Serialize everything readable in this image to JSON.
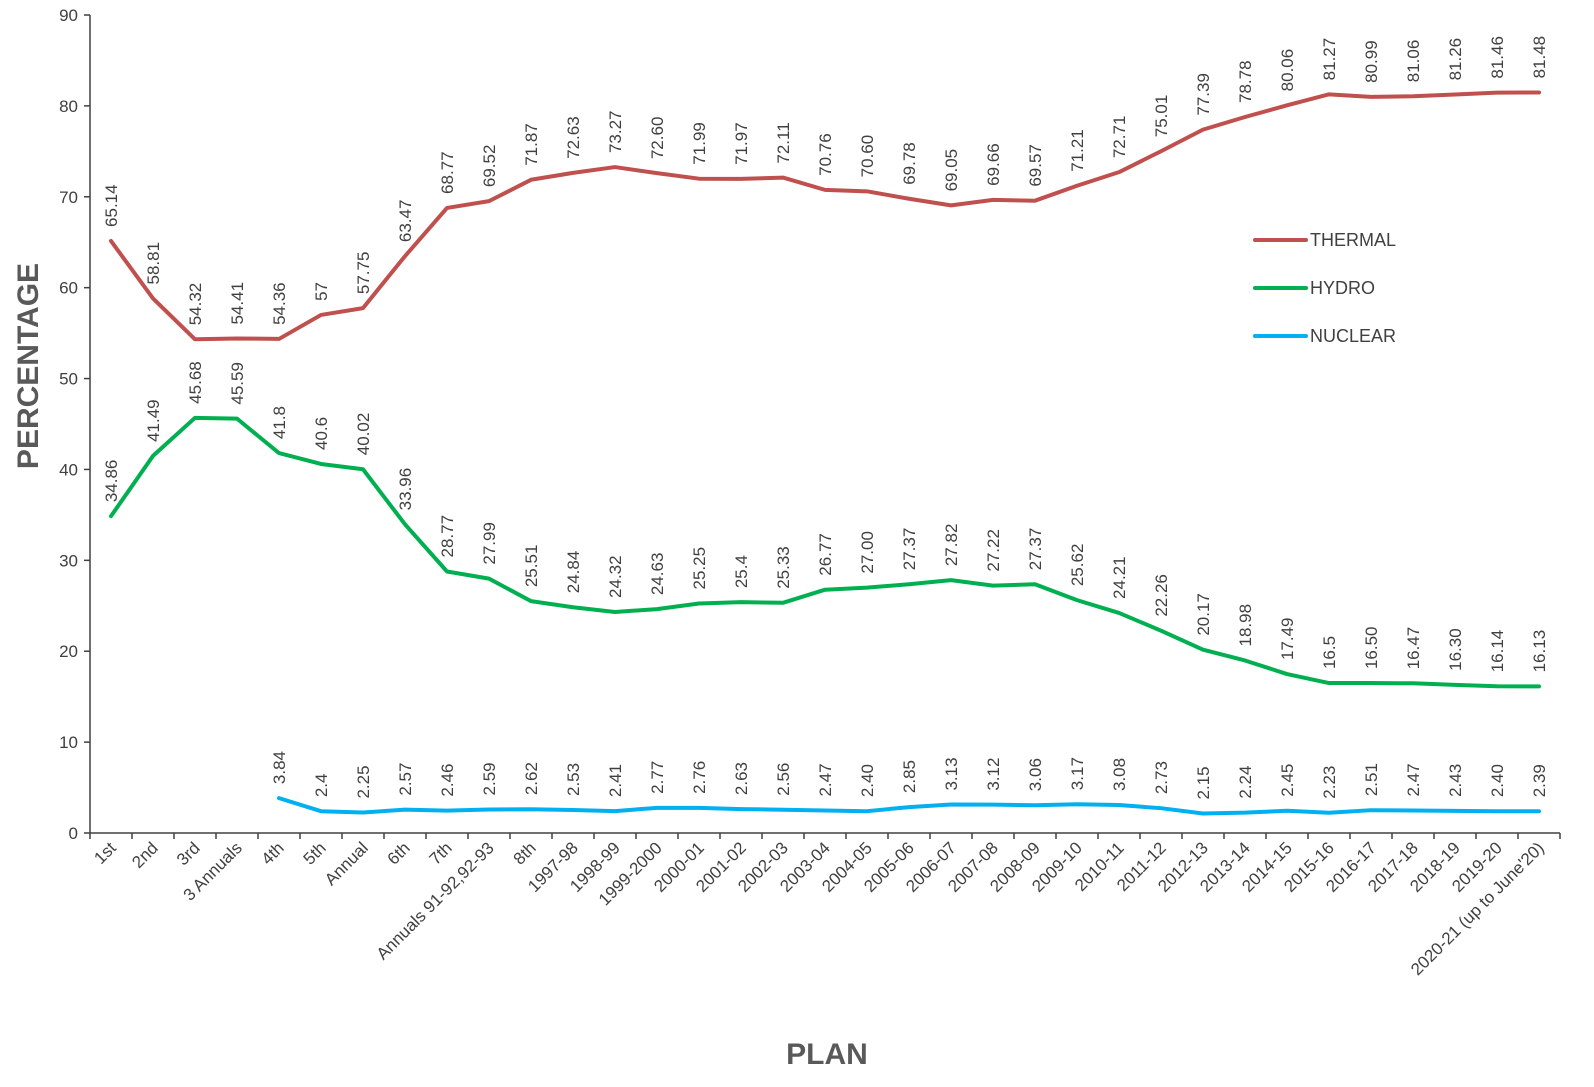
{
  "chart_data": {
    "type": "line",
    "xlabel": "PLAN",
    "ylabel": "PERCENTAGE",
    "ylim": [
      0,
      90
    ],
    "yticks": [
      "0",
      "10",
      "20",
      "30",
      "40",
      "50",
      "60",
      "70",
      "80",
      "90"
    ],
    "grid": false,
    "legend_position": "right",
    "categories": [
      "1st",
      "2nd",
      "3rd",
      "3 Annuals",
      "4th",
      "5th",
      "Annual",
      "6th",
      "7th",
      "Annuals  91-92,92-93",
      "8th",
      "1997-98",
      "1998-99",
      "1999-2000",
      "2000-01",
      "2001-02",
      "2002-03",
      "2003-04",
      "2004-05",
      "2005-06",
      "2006-07",
      "2007-08",
      "2008-09",
      "2009-10",
      "2010-11",
      "2011-12",
      "2012-13",
      "2013-14",
      "2014-15",
      "2015-16",
      "2016-17",
      "2017-18",
      "2018-19",
      "2019-20",
      "2020-21 (up to June'20)"
    ],
    "series": [
      {
        "name": "THERMAL",
        "color": "#C0504D",
        "values": [
          65.14,
          58.81,
          54.32,
          54.41,
          54.36,
          57,
          57.75,
          63.47,
          68.77,
          69.52,
          71.87,
          72.63,
          73.27,
          72.6,
          71.99,
          71.97,
          72.11,
          70.76,
          70.6,
          69.78,
          69.05,
          69.66,
          69.57,
          71.21,
          72.71,
          75.01,
          77.39,
          78.78,
          80.06,
          81.27,
          80.99,
          81.06,
          81.26,
          81.46,
          81.48
        ],
        "labels": [
          "65.14",
          "58.81",
          "54.32",
          "54.41",
          "54.36",
          "57",
          "57.75",
          "63.47",
          "68.77",
          "69.52",
          "71.87",
          "72.63",
          "73.27",
          "72.60",
          "71.99",
          "71.97",
          "72.11",
          "70.76",
          "70.60",
          "69.78",
          "69.05",
          "69.66",
          "69.57",
          "71.21",
          "72.71",
          "75.01",
          "77.39",
          "78.78",
          "80.06",
          "81.27",
          "80.99",
          "81.06",
          "81.26",
          "81.46",
          "81.48"
        ]
      },
      {
        "name": "HYDRO",
        "color": "#00B050",
        "values": [
          34.86,
          41.49,
          45.68,
          45.59,
          41.8,
          40.6,
          40.02,
          33.96,
          28.77,
          27.99,
          25.51,
          24.84,
          24.32,
          24.63,
          25.25,
          25.4,
          25.33,
          26.77,
          27.0,
          27.37,
          27.82,
          27.22,
          27.37,
          25.62,
          24.21,
          22.26,
          20.17,
          18.98,
          17.49,
          16.5,
          16.5,
          16.47,
          16.3,
          16.14,
          16.13
        ],
        "labels": [
          "34.86",
          "41.49",
          "45.68",
          "45.59",
          "41.8",
          "40.6",
          "40.02",
          "33.96",
          "28.77",
          "27.99",
          "25.51",
          "24.84",
          "24.32",
          "24.63",
          "25.25",
          "25.4",
          "25.33",
          "26.77",
          "27.00",
          "27.37",
          "27.82",
          "27.22",
          "27.37",
          "25.62",
          "24.21",
          "22.26",
          "20.17",
          "18.98",
          "17.49",
          "16.5",
          "16.50",
          "16.47",
          "16.30",
          "16.14",
          "16.13"
        ]
      },
      {
        "name": "NUCLEAR",
        "color": "#00B0F0",
        "values": [
          null,
          null,
          null,
          null,
          3.84,
          2.4,
          2.25,
          2.57,
          2.46,
          2.59,
          2.62,
          2.53,
          2.41,
          2.77,
          2.76,
          2.63,
          2.56,
          2.47,
          2.4,
          2.85,
          3.13,
          3.12,
          3.06,
          3.17,
          3.08,
          2.73,
          2.15,
          2.24,
          2.45,
          2.23,
          2.51,
          2.47,
          2.43,
          2.4,
          2.39
        ],
        "labels": [
          null,
          null,
          null,
          null,
          "3.84",
          "2.4",
          "2.25",
          "2.57",
          "2.46",
          "2.59",
          "2.62",
          "2.53",
          "2.41",
          "2.77",
          "2.76",
          "2.63",
          "2.56",
          "2.47",
          "2.40",
          "2.85",
          "3.13",
          "3.12",
          "3.06",
          "3.17",
          "3.08",
          "2.73",
          "2.15",
          "2.24",
          "2.45",
          "2.23",
          "2.51",
          "2.47",
          "2.43",
          "2.40",
          "2.39"
        ]
      }
    ]
  }
}
